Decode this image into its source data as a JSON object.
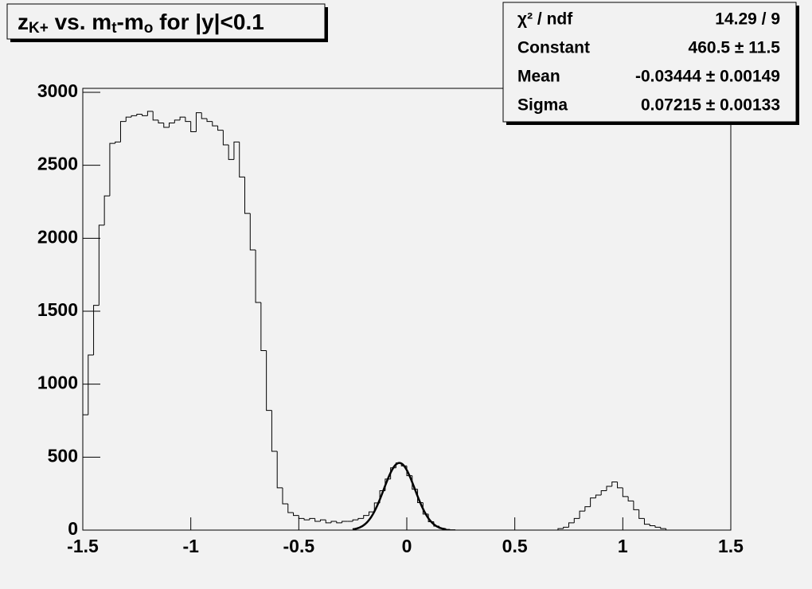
{
  "chart_data": {
    "type": "histogram",
    "title": [
      "z",
      "K+",
      " vs. m",
      "t",
      "-m",
      "o",
      " for |y|<0.1"
    ],
    "bins": [
      -1.5,
      -1.475,
      -1.45,
      -1.425,
      -1.4,
      -1.375,
      -1.35,
      -1.325,
      -1.3,
      -1.275,
      -1.25,
      -1.225,
      -1.2,
      -1.175,
      -1.15,
      -1.125,
      -1.1,
      -1.075,
      -1.05,
      -1.025,
      -1,
      -0.975,
      -0.95,
      -0.925,
      -0.9,
      -0.875,
      -0.85,
      -0.825,
      -0.8,
      -0.775,
      -0.75,
      -0.725,
      -0.7,
      -0.675,
      -0.65,
      -0.625,
      -0.6,
      -0.575,
      -0.55,
      -0.525,
      -0.5,
      -0.475,
      -0.45,
      -0.425,
      -0.4,
      -0.375,
      -0.35,
      -0.325,
      -0.3,
      -0.275,
      -0.25,
      -0.225,
      -0.2,
      -0.175,
      -0.15,
      -0.125,
      -0.1,
      -0.075,
      -0.05,
      -0.025,
      0,
      0.025,
      0.05,
      0.075,
      0.1,
      0.125,
      0.15,
      0.175,
      0.2,
      0.225,
      0.25,
      0.275,
      0.3,
      0.325,
      0.35,
      0.375,
      0.4,
      0.425,
      0.45,
      0.475,
      0.5,
      0.525,
      0.55,
      0.575,
      0.6,
      0.625,
      0.65,
      0.675,
      0.7,
      0.725,
      0.75,
      0.775,
      0.8,
      0.825,
      0.85,
      0.875,
      0.9,
      0.925,
      0.95,
      0.975,
      1,
      1.025,
      1.05,
      1.075,
      1.1,
      1.125,
      1.15,
      1.175,
      1.2,
      1.225,
      1.25,
      1.275,
      1.3,
      1.325,
      1.35,
      1.375,
      1.4,
      1.425,
      1.45,
      1.475,
      1.5
    ],
    "values": [
      790,
      1200,
      1540,
      2090,
      2290,
      2650,
      2660,
      2800,
      2830,
      2840,
      2850,
      2840,
      2870,
      2810,
      2790,
      2760,
      2790,
      2810,
      2830,
      2800,
      2730,
      2860,
      2820,
      2800,
      2770,
      2740,
      2640,
      2540,
      2660,
      2420,
      2170,
      1920,
      1560,
      1230,
      820,
      540,
      290,
      180,
      120,
      100,
      80,
      70,
      80,
      60,
      70,
      50,
      60,
      50,
      60,
      60,
      70,
      80,
      100,
      125,
      186,
      270,
      350,
      427,
      460,
      440,
      373,
      280,
      188,
      110,
      57,
      27,
      12,
      5,
      2,
      0,
      0,
      0,
      0,
      0,
      0,
      0,
      0,
      0,
      0,
      0,
      0,
      0,
      0,
      0,
      0,
      0,
      0,
      0,
      10,
      20,
      50,
      80,
      130,
      160,
      220,
      240,
      270,
      300,
      330,
      290,
      230,
      200,
      140,
      80,
      40,
      30,
      20,
      10,
      0,
      0,
      0,
      0,
      0,
      0,
      0,
      0,
      0,
      0,
      0,
      0
    ],
    "color": "#000000",
    "fit": {
      "constant": 460.5,
      "mean": -0.03444,
      "sigma": 0.07215,
      "color": "#000000"
    },
    "stats": [
      {
        "label": "χ² / ndf",
        "value": "14.29 / 9"
      },
      {
        "label": "Constant",
        "value": "460.5 ± 11.5"
      },
      {
        "label": "Mean",
        "value": "-0.03444 ± 0.00149"
      },
      {
        "label": "Sigma",
        "value": "0.07215 ± 0.00133"
      }
    ],
    "xlim": [
      -1.5,
      1.5
    ],
    "ylim": [
      0,
      3000
    ],
    "xticks": [
      -1.5,
      -1,
      -0.5,
      0,
      0.5,
      1,
      1.5
    ],
    "yticks": [
      0,
      500,
      1000,
      1500,
      2000,
      2500,
      3000
    ]
  }
}
